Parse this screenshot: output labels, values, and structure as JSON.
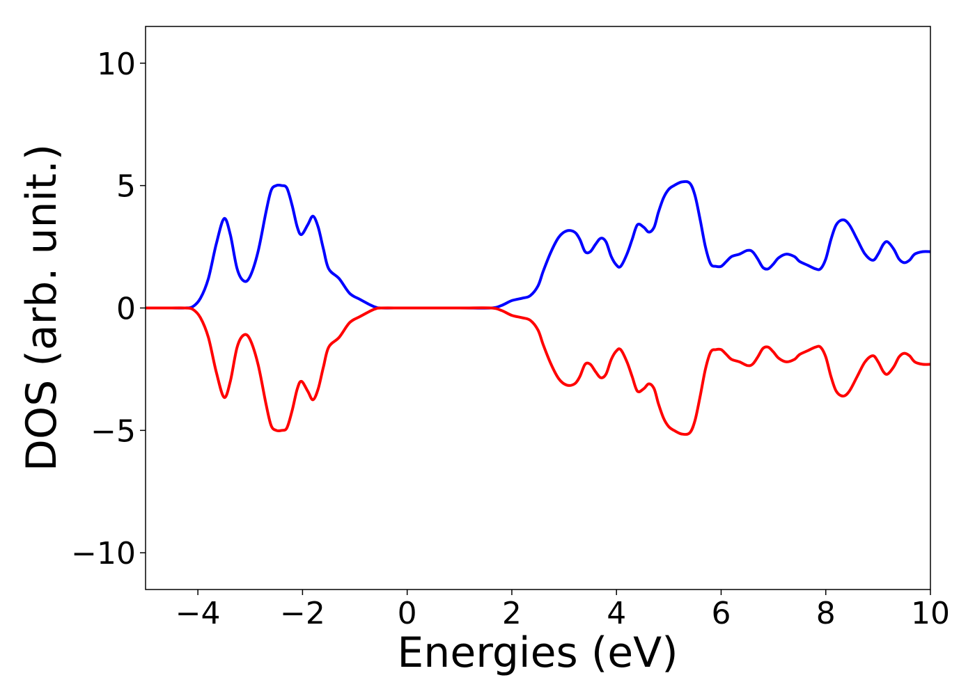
{
  "chart_data": {
    "type": "line",
    "title": "",
    "xlabel": "Energies (eV)",
    "ylabel": "DOS (arb. unit.)",
    "xlim": [
      -5,
      10
    ],
    "ylim": [
      -11.5,
      11.5
    ],
    "xticks": [
      -4,
      -2,
      0,
      2,
      4,
      6,
      8,
      10
    ],
    "xtick_labels": [
      "−4",
      "−2",
      "0",
      "2",
      "4",
      "6",
      "8",
      "10"
    ],
    "yticks": [
      -10,
      -5,
      0,
      5,
      10
    ],
    "ytick_labels": [
      "−10",
      "−5",
      "0",
      "5",
      "10"
    ],
    "grid": false,
    "legend": "none",
    "series": [
      {
        "color": "#0000ff",
        "x": [
          -5.0,
          -4.5,
          -4.25,
          -4.1,
          -3.95,
          -3.8,
          -3.65,
          -3.5,
          -3.38,
          -3.25,
          -3.12,
          -3.0,
          -2.85,
          -2.7,
          -2.6,
          -2.5,
          -2.4,
          -2.3,
          -2.2,
          -2.1,
          -2.02,
          -1.9,
          -1.8,
          -1.7,
          -1.6,
          -1.5,
          -1.3,
          -1.1,
          -0.9,
          -0.7,
          -0.6,
          -0.5,
          0.0,
          1.0,
          1.6,
          1.8,
          2.0,
          2.2,
          2.35,
          2.5,
          2.6,
          2.75,
          2.9,
          3.05,
          3.2,
          3.3,
          3.4,
          3.5,
          3.6,
          3.7,
          3.8,
          3.9,
          4.0,
          4.08,
          4.2,
          4.3,
          4.4,
          4.52,
          4.62,
          4.72,
          4.8,
          4.9,
          5.0,
          5.1,
          5.25,
          5.4,
          5.5,
          5.6,
          5.7,
          5.8,
          5.9,
          6.0,
          6.1,
          6.2,
          6.35,
          6.5,
          6.6,
          6.7,
          6.8,
          6.9,
          7.0,
          7.1,
          7.25,
          7.4,
          7.5,
          7.65,
          7.8,
          7.9,
          8.0,
          8.1,
          8.2,
          8.33,
          8.45,
          8.6,
          8.75,
          8.9,
          9.0,
          9.1,
          9.18,
          9.3,
          9.4,
          9.5,
          9.6,
          9.7,
          9.85,
          10.0
        ],
        "y": [
          0.0,
          0.0,
          0.0,
          0.05,
          0.4,
          1.2,
          2.6,
          3.65,
          3.0,
          1.6,
          1.1,
          1.3,
          2.3,
          3.9,
          4.8,
          5.0,
          5.0,
          4.9,
          4.2,
          3.3,
          3.0,
          3.4,
          3.75,
          3.3,
          2.4,
          1.6,
          1.2,
          0.6,
          0.35,
          0.12,
          0.03,
          0.0,
          0.0,
          0.0,
          0.0,
          0.1,
          0.3,
          0.4,
          0.5,
          0.9,
          1.5,
          2.3,
          2.9,
          3.15,
          3.1,
          2.8,
          2.3,
          2.3,
          2.6,
          2.85,
          2.7,
          2.1,
          1.75,
          1.7,
          2.2,
          2.8,
          3.4,
          3.3,
          3.1,
          3.3,
          3.9,
          4.5,
          4.85,
          5.0,
          5.15,
          5.1,
          4.6,
          3.6,
          2.5,
          1.8,
          1.7,
          1.7,
          1.9,
          2.1,
          2.2,
          2.35,
          2.3,
          2.0,
          1.65,
          1.6,
          1.8,
          2.05,
          2.2,
          2.1,
          1.9,
          1.75,
          1.6,
          1.6,
          2.0,
          2.8,
          3.4,
          3.6,
          3.4,
          2.8,
          2.2,
          1.95,
          2.2,
          2.6,
          2.7,
          2.4,
          2.0,
          1.85,
          1.95,
          2.2,
          2.3,
          2.3
        ]
      },
      {
        "color": "#ff0000",
        "x": [
          -5.0,
          -4.5,
          -4.25,
          -4.1,
          -3.95,
          -3.8,
          -3.65,
          -3.5,
          -3.38,
          -3.25,
          -3.12,
          -3.0,
          -2.85,
          -2.7,
          -2.6,
          -2.5,
          -2.4,
          -2.3,
          -2.2,
          -2.1,
          -2.02,
          -1.9,
          -1.8,
          -1.7,
          -1.6,
          -1.5,
          -1.3,
          -1.1,
          -0.9,
          -0.7,
          -0.6,
          -0.5,
          0.0,
          1.0,
          1.6,
          1.8,
          2.0,
          2.2,
          2.35,
          2.5,
          2.6,
          2.75,
          2.9,
          3.05,
          3.2,
          3.3,
          3.4,
          3.5,
          3.6,
          3.7,
          3.8,
          3.9,
          4.0,
          4.08,
          4.2,
          4.3,
          4.4,
          4.52,
          4.62,
          4.72,
          4.8,
          4.9,
          5.0,
          5.1,
          5.25,
          5.4,
          5.5,
          5.6,
          5.7,
          5.8,
          5.9,
          6.0,
          6.1,
          6.2,
          6.35,
          6.5,
          6.6,
          6.7,
          6.8,
          6.9,
          7.0,
          7.1,
          7.25,
          7.4,
          7.5,
          7.65,
          7.8,
          7.9,
          8.0,
          8.1,
          8.2,
          8.33,
          8.45,
          8.6,
          8.75,
          8.9,
          9.0,
          9.1,
          9.18,
          9.3,
          9.4,
          9.5,
          9.6,
          9.7,
          9.85,
          10.0
        ],
        "y": [
          0.0,
          0.0,
          0.0,
          -0.05,
          -0.4,
          -1.2,
          -2.6,
          -3.65,
          -3.0,
          -1.6,
          -1.1,
          -1.3,
          -2.3,
          -3.9,
          -4.8,
          -5.0,
          -5.0,
          -4.9,
          -4.2,
          -3.3,
          -3.0,
          -3.4,
          -3.75,
          -3.3,
          -2.4,
          -1.6,
          -1.2,
          -0.6,
          -0.35,
          -0.12,
          -0.03,
          0.0,
          0.0,
          0.0,
          0.0,
          -0.1,
          -0.3,
          -0.4,
          -0.5,
          -0.9,
          -1.5,
          -2.3,
          -2.9,
          -3.15,
          -3.1,
          -2.8,
          -2.3,
          -2.3,
          -2.6,
          -2.85,
          -2.7,
          -2.1,
          -1.75,
          -1.7,
          -2.2,
          -2.8,
          -3.4,
          -3.3,
          -3.1,
          -3.3,
          -3.9,
          -4.5,
          -4.85,
          -5.0,
          -5.15,
          -5.1,
          -4.6,
          -3.6,
          -2.5,
          -1.8,
          -1.7,
          -1.7,
          -1.9,
          -2.1,
          -2.2,
          -2.35,
          -2.3,
          -2.0,
          -1.65,
          -1.6,
          -1.8,
          -2.05,
          -2.2,
          -2.1,
          -1.9,
          -1.75,
          -1.6,
          -1.6,
          -2.0,
          -2.8,
          -3.4,
          -3.6,
          -3.4,
          -2.8,
          -2.2,
          -1.95,
          -2.2,
          -2.6,
          -2.7,
          -2.4,
          -2.0,
          -1.85,
          -1.95,
          -2.2,
          -2.3,
          -2.3
        ]
      }
    ]
  }
}
